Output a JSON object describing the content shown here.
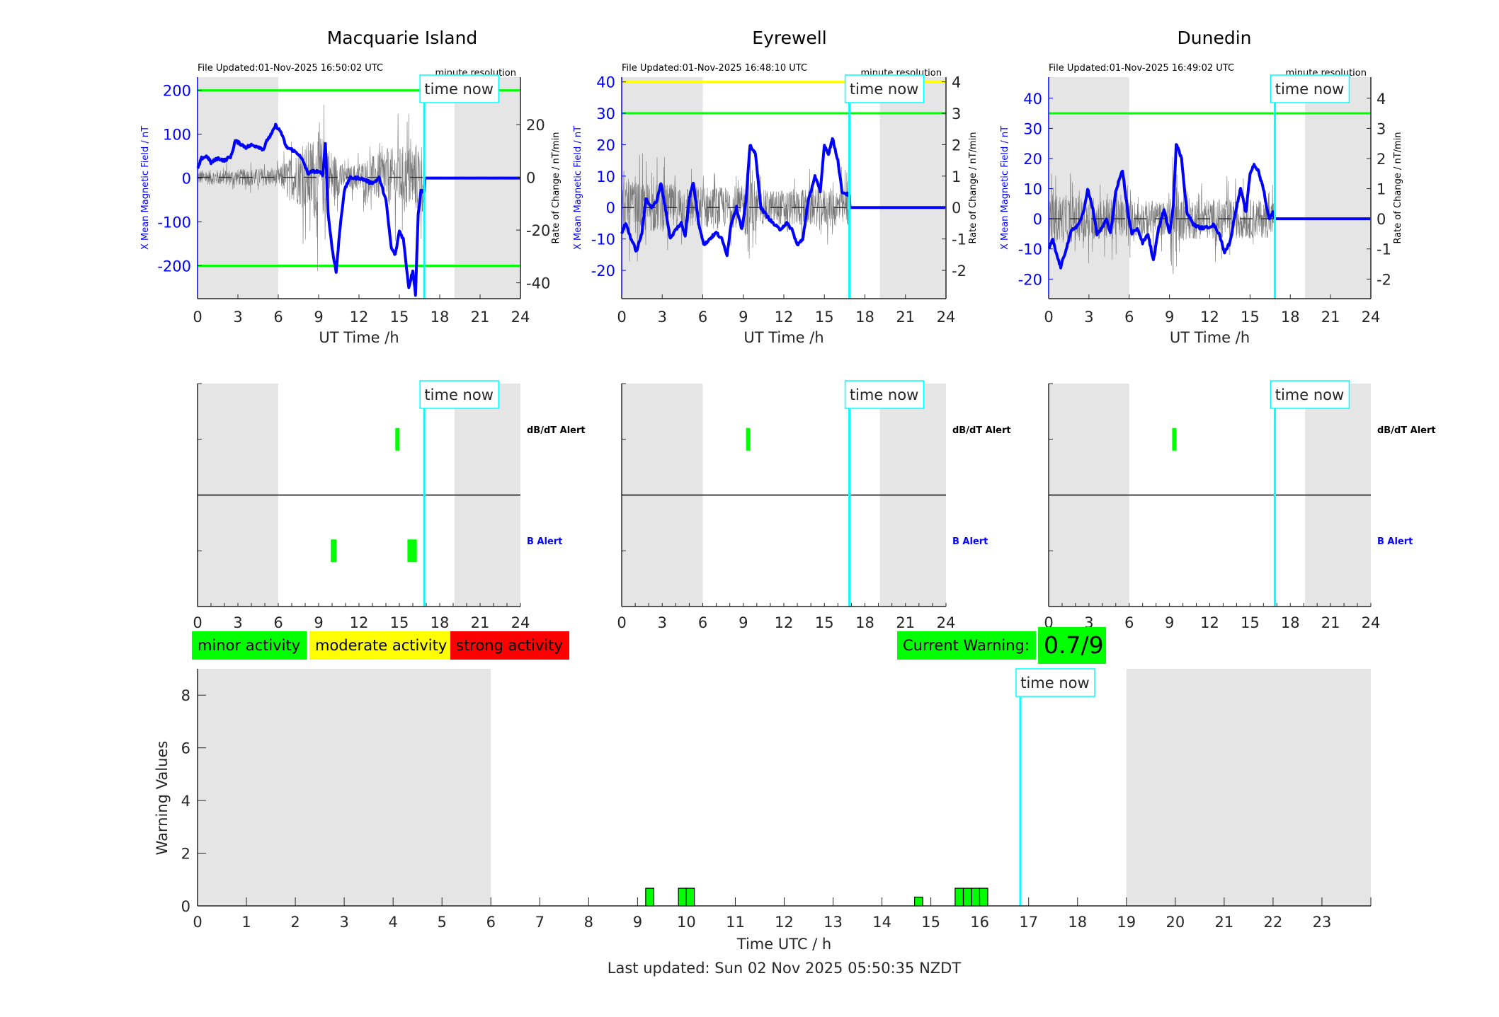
{
  "colors": {
    "field_line": "#0000ff",
    "rate_line": "#555555",
    "night_shade": "#e5e5e5",
    "time_now": "#00ffff",
    "minor": "#00ff00",
    "moderate": "#ffff00",
    "strong": "#ff0000"
  },
  "time_now_label": "time now",
  "resolution_label": "minute resolution",
  "stations": [
    {
      "name": "Macquarie Island",
      "file_updated": "File Updated:01-Nov-2025 16:50:02 UTC",
      "left_ylabel": "X Mean Magnetic Field / nT",
      "right_ylabel": "Rate of Change / nT/min",
      "xlabel": "UT Time /h",
      "xticks": [
        "0",
        "3",
        "6",
        "9",
        "12",
        "15",
        "18",
        "21",
        "24"
      ],
      "left_ylim": [
        -275,
        230
      ],
      "left_yticks": [
        "-200",
        "-100",
        "0",
        "100",
        "200"
      ],
      "right_ylim": [
        -46,
        38
      ],
      "right_yticks": [
        "-40",
        "-20",
        "0",
        "20"
      ],
      "thresholds": [
        {
          "value": 200,
          "color": "#00ff00"
        },
        {
          "value": -200,
          "color": "#00ff00"
        }
      ],
      "night_hours": [
        [
          0,
          6
        ],
        [
          19.1,
          24
        ]
      ],
      "time_now_hour": 16.85,
      "field_series": [
        [
          0,
          20
        ],
        [
          0.3,
          45
        ],
        [
          0.7,
          50
        ],
        [
          1,
          35
        ],
        [
          1.5,
          45
        ],
        [
          2,
          40
        ],
        [
          2.5,
          50
        ],
        [
          2.8,
          85
        ],
        [
          3.2,
          78
        ],
        [
          3.6,
          70
        ],
        [
          4,
          75
        ],
        [
          4.5,
          72
        ],
        [
          4.9,
          65
        ],
        [
          5.2,
          88
        ],
        [
          5.5,
          100
        ],
        [
          5.8,
          120
        ],
        [
          6.2,
          105
        ],
        [
          6.6,
          70
        ],
        [
          7,
          65
        ],
        [
          7.5,
          55
        ],
        [
          7.9,
          35
        ],
        [
          8.2,
          10
        ],
        [
          8.5,
          15
        ],
        [
          9,
          15
        ],
        [
          9.3,
          5
        ],
        [
          9.5,
          80
        ],
        [
          9.7,
          -80
        ],
        [
          10,
          -160
        ],
        [
          10.3,
          -215
        ],
        [
          10.6,
          -110
        ],
        [
          10.9,
          -30
        ],
        [
          11.3,
          0
        ],
        [
          12,
          0
        ],
        [
          12.5,
          -5
        ],
        [
          12.8,
          -10
        ],
        [
          13.1,
          -10
        ],
        [
          13.5,
          0
        ],
        [
          14,
          -50
        ],
        [
          14.4,
          -160
        ],
        [
          14.7,
          -175
        ],
        [
          15,
          -120
        ],
        [
          15.3,
          -140
        ],
        [
          15.7,
          -250
        ],
        [
          16,
          -210
        ],
        [
          16.2,
          -265
        ],
        [
          16.4,
          -80
        ],
        [
          16.6,
          -30
        ],
        [
          16.85,
          -30
        ],
        [
          16.9,
          0
        ],
        [
          24,
          0
        ]
      ],
      "rate_amplitude": [
        [
          0,
          4
        ],
        [
          6,
          5
        ],
        [
          9,
          25
        ],
        [
          11,
          5
        ],
        [
          14,
          15
        ],
        [
          16.85,
          20
        ]
      ]
    },
    {
      "name": "Eyrewell",
      "file_updated": "File Updated:01-Nov-2025 16:48:10 UTC",
      "left_ylabel": "X Mean Magnetic Field / nT",
      "right_ylabel": "Rate of Change / nT/min",
      "xlabel": "UT Time /h",
      "xticks": [
        "0",
        "3",
        "6",
        "9",
        "12",
        "15",
        "18",
        "21",
        "24"
      ],
      "left_ylim": [
        -29,
        41.5
      ],
      "left_yticks": [
        "-20",
        "-10",
        "0",
        "10",
        "20",
        "30",
        "40"
      ],
      "right_ylim": [
        -2.9,
        4.15
      ],
      "right_yticks": [
        "-2",
        "-1",
        "0",
        "1",
        "2",
        "3",
        "4"
      ],
      "thresholds": [
        {
          "value": 40,
          "color": "#ffff00"
        },
        {
          "value": 30,
          "color": "#00ff00"
        }
      ],
      "night_hours": [
        [
          0,
          6
        ],
        [
          19.1,
          24
        ]
      ],
      "time_now_hour": 16.85,
      "field_series": [
        [
          0,
          -8
        ],
        [
          0.3,
          -5
        ],
        [
          0.7,
          -10
        ],
        [
          1.1,
          -14
        ],
        [
          1.5,
          -8
        ],
        [
          1.8,
          3
        ],
        [
          2.2,
          0
        ],
        [
          2.6,
          2
        ],
        [
          2.9,
          8
        ],
        [
          3.3,
          -2
        ],
        [
          3.6,
          -10
        ],
        [
          4,
          -7
        ],
        [
          4.4,
          -5
        ],
        [
          4.7,
          -9
        ],
        [
          5,
          3
        ],
        [
          5.3,
          8
        ],
        [
          5.7,
          -5
        ],
        [
          6.1,
          -12
        ],
        [
          6.5,
          -10
        ],
        [
          7,
          -8
        ],
        [
          7.4,
          -10
        ],
        [
          7.8,
          -15
        ],
        [
          8.1,
          -5
        ],
        [
          8.5,
          0
        ],
        [
          8.9,
          -7
        ],
        [
          9.2,
          2
        ],
        [
          9.5,
          20
        ],
        [
          9.9,
          17
        ],
        [
          10.3,
          0
        ],
        [
          10.8,
          -3
        ],
        [
          11.2,
          -5
        ],
        [
          11.7,
          -7
        ],
        [
          12.2,
          -5
        ],
        [
          12.6,
          -7
        ],
        [
          13,
          -12
        ],
        [
          13.4,
          -10
        ],
        [
          13.8,
          2
        ],
        [
          14.3,
          10
        ],
        [
          14.7,
          5
        ],
        [
          15,
          20
        ],
        [
          15.3,
          17
        ],
        [
          15.6,
          22
        ],
        [
          16,
          15
        ],
        [
          16.3,
          5
        ],
        [
          16.85,
          4
        ],
        [
          16.9,
          0
        ],
        [
          24,
          0
        ]
      ],
      "rate_amplitude": [
        [
          0,
          1.2
        ],
        [
          6,
          1
        ],
        [
          9,
          0.9
        ],
        [
          9.5,
          2.6
        ],
        [
          10,
          0.8
        ],
        [
          16.85,
          0.9
        ]
      ]
    },
    {
      "name": "Dunedin",
      "file_updated": "File Updated:01-Nov-2025 16:49:02 UTC",
      "left_ylabel": "X Mean Magnetic Field / nT",
      "right_ylabel": "Rate of Change / nT/min",
      "xlabel": "UT Time /h",
      "xticks": [
        "0",
        "3",
        "6",
        "9",
        "12",
        "15",
        "18",
        "21",
        "24"
      ],
      "left_ylim": [
        -26.5,
        47
      ],
      "left_yticks": [
        "-20",
        "-10",
        "0",
        "10",
        "20",
        "30",
        "40"
      ],
      "right_ylim": [
        -2.65,
        4.7
      ],
      "right_yticks": [
        "-2",
        "-1",
        "0",
        "1",
        "2",
        "3",
        "4"
      ],
      "thresholds": [
        {
          "value": 35,
          "color": "#00ff00"
        }
      ],
      "night_hours": [
        [
          0,
          6
        ],
        [
          19.1,
          24
        ]
      ],
      "time_now_hour": 16.85,
      "field_series": [
        [
          0,
          -10
        ],
        [
          0.3,
          -7
        ],
        [
          0.6,
          -12
        ],
        [
          0.9,
          -16
        ],
        [
          1.3,
          -10
        ],
        [
          1.7,
          -4
        ],
        [
          2.2,
          -2
        ],
        [
          2.6,
          2
        ],
        [
          2.9,
          10
        ],
        [
          3.3,
          3
        ],
        [
          3.6,
          -5
        ],
        [
          4,
          -3
        ],
        [
          4.3,
          0
        ],
        [
          4.6,
          -5
        ],
        [
          5,
          9
        ],
        [
          5.5,
          16
        ],
        [
          5.9,
          2
        ],
        [
          6.2,
          -5
        ],
        [
          6.6,
          -3
        ],
        [
          7,
          -8
        ],
        [
          7.4,
          -5
        ],
        [
          7.8,
          -14
        ],
        [
          8.2,
          -3
        ],
        [
          8.6,
          3
        ],
        [
          9,
          -5
        ],
        [
          9.3,
          5
        ],
        [
          9.5,
          25
        ],
        [
          9.9,
          20
        ],
        [
          10.3,
          2
        ],
        [
          10.8,
          -2
        ],
        [
          11.3,
          -3
        ],
        [
          11.7,
          -3
        ],
        [
          12.3,
          -2
        ],
        [
          12.7,
          -5
        ],
        [
          13.1,
          -11
        ],
        [
          13.5,
          -8
        ],
        [
          13.9,
          2
        ],
        [
          14.3,
          10
        ],
        [
          14.7,
          2
        ],
        [
          15,
          15
        ],
        [
          15.3,
          18
        ],
        [
          15.6,
          16
        ],
        [
          16,
          10
        ],
        [
          16.4,
          0
        ],
        [
          16.7,
          2
        ],
        [
          16.85,
          0
        ],
        [
          24,
          0
        ]
      ],
      "rate_amplitude": [
        [
          0,
          1.2
        ],
        [
          6,
          0.9
        ],
        [
          9,
          0.8
        ],
        [
          9.3,
          3.6
        ],
        [
          9.8,
          1
        ],
        [
          16.85,
          0.9
        ]
      ]
    }
  ],
  "alerts": [
    {
      "station": "Macquarie Island",
      "dbdt": [
        [
          14.7,
          15.0
        ]
      ],
      "b": [
        [
          9.9,
          10.3
        ],
        [
          15.6,
          16.3
        ]
      ]
    },
    {
      "station": "Eyrewell",
      "dbdt": [
        [
          9.2,
          9.5
        ]
      ],
      "b": []
    },
    {
      "station": "Dunedin",
      "dbdt": [
        [
          9.2,
          9.5
        ]
      ],
      "b": []
    }
  ],
  "alert_labels": {
    "dbdt": "dB/dT Alert",
    "b": "B Alert"
  },
  "alert_xticks": [
    "0",
    "3",
    "6",
    "9",
    "12",
    "15",
    "18",
    "21",
    "24"
  ],
  "legend": {
    "minor": "minor activity",
    "moderate": "moderate activity",
    "strong": "strong activity"
  },
  "current_warning": {
    "label": "Current Warning:",
    "value": "0.7/9"
  },
  "chart_data": {
    "type": "bar",
    "title": "",
    "xlabel": "Time UTC / h",
    "ylabel": "Warning Values",
    "xlim": [
      0,
      24
    ],
    "ylim": [
      0,
      9
    ],
    "xticks": [
      "0",
      "1",
      "2",
      "3",
      "4",
      "5",
      "6",
      "7",
      "8",
      "9",
      "10",
      "11",
      "12",
      "13",
      "14",
      "15",
      "16",
      "17",
      "18",
      "19",
      "20",
      "21",
      "22",
      "23"
    ],
    "yticks": [
      "0",
      "2",
      "4",
      "6",
      "8"
    ],
    "night_hours": [
      [
        0,
        6
      ],
      [
        19,
        24
      ]
    ],
    "time_now_hour": 16.83,
    "bar_width_hours": 0.167,
    "x": [
      9.25,
      9.92,
      10.08,
      14.75,
      15.58,
      15.75,
      15.92,
      16.08
    ],
    "values": [
      0.67,
      0.67,
      0.67,
      0.33,
      0.67,
      0.67,
      0.67,
      0.67
    ]
  },
  "footer": "Last updated: Sun 02 Nov 2025 05:50:35 NZDT"
}
